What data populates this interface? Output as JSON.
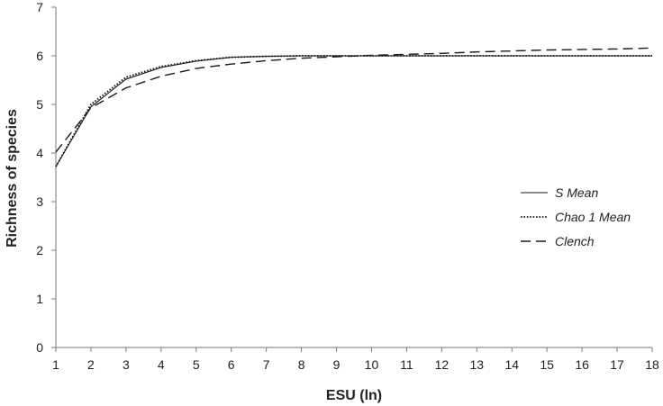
{
  "chart_data": {
    "type": "line",
    "title": "",
    "xlabel": "ESU (ln)",
    "ylabel": "Richness of species",
    "xlim": [
      1,
      18
    ],
    "ylim": [
      0,
      7
    ],
    "x_ticks": [
      "1",
      "2",
      "3",
      "4",
      "5",
      "6",
      "7",
      "8",
      "9",
      "10",
      "11",
      "12",
      "13",
      "14",
      "15",
      "16",
      "17",
      "18"
    ],
    "y_ticks": [
      "0",
      "1",
      "2",
      "3",
      "4",
      "5",
      "6",
      "7"
    ],
    "grid": false,
    "legend_position": "right",
    "x": [
      1,
      2,
      3,
      4,
      5,
      6,
      7,
      8,
      9,
      10,
      11,
      12,
      13,
      14,
      15,
      16,
      17,
      18
    ],
    "series": [
      {
        "name": "S Mean",
        "style": "solid",
        "values": [
          3.72,
          4.95,
          5.52,
          5.76,
          5.89,
          5.97,
          5.99,
          6.0,
          6.0,
          6.0,
          6.0,
          6.0,
          6.0,
          6.0,
          6.0,
          6.0,
          6.0,
          6.0
        ]
      },
      {
        "name": "Chao 1 Mean",
        "style": "dotted",
        "values": [
          3.72,
          5.0,
          5.56,
          5.78,
          5.9,
          5.97,
          5.99,
          6.0,
          6.0,
          6.0,
          6.0,
          6.0,
          6.0,
          6.0,
          6.0,
          6.0,
          6.0,
          6.0
        ]
      },
      {
        "name": "Clench",
        "style": "dashed",
        "values": [
          4.02,
          4.93,
          5.34,
          5.58,
          5.74,
          5.83,
          5.9,
          5.95,
          5.98,
          6.01,
          6.03,
          6.05,
          6.08,
          6.1,
          6.12,
          6.13,
          6.14,
          6.16
        ]
      }
    ]
  }
}
